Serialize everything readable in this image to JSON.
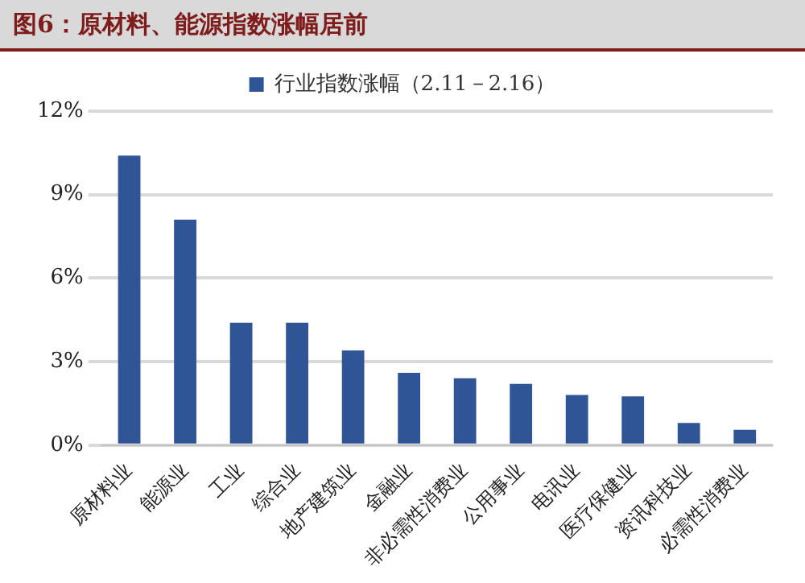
{
  "chart_data": {
    "type": "bar",
    "title": "图6：原材料、能源指数涨幅居前",
    "categories": [
      "原材料业",
      "能源业",
      "工业",
      "综合业",
      "地产建筑业",
      "金融业",
      "非必需性消费业",
      "公用事业",
      "电讯业",
      "医疗保健业",
      "资讯科技业",
      "必需性消费业"
    ],
    "series": [
      {
        "name": "行业指数涨幅（2.11－2.16）",
        "color": "#2f5597",
        "values": [
          10.4,
          8.1,
          4.4,
          4.4,
          3.4,
          2.6,
          2.4,
          2.2,
          1.8,
          1.75,
          0.8,
          0.55
        ]
      }
    ],
    "ylim": [
      0,
      12
    ],
    "yticks": [
      {
        "value": 0,
        "label": "0%"
      },
      {
        "value": 3,
        "label": "3%"
      },
      {
        "value": 6,
        "label": "6%"
      },
      {
        "value": 9,
        "label": "9%"
      },
      {
        "value": 12,
        "label": "12%"
      }
    ],
    "grid": "y",
    "legend": "top"
  }
}
